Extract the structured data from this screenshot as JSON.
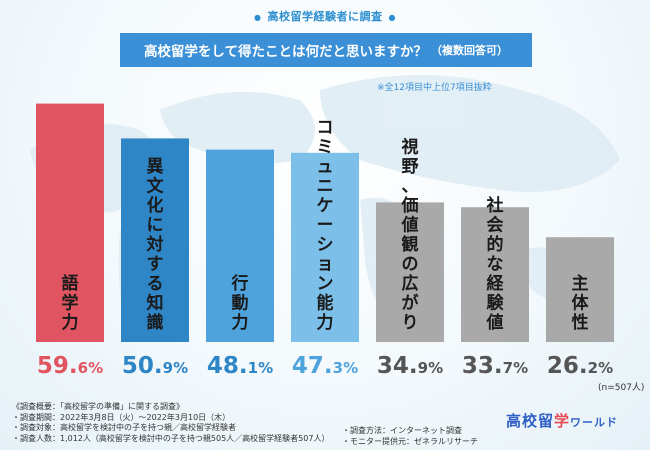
{
  "header": {
    "survey_label": "高校留学経験者に調査"
  },
  "question": {
    "main": "高校留学をして得たことは何だと思いますか？",
    "suffix": "（複数回答可）"
  },
  "note": "※全12項目中上位7項目抜粋",
  "sample": "(n=507人)",
  "chart_data": {
    "type": "bar",
    "categories": [
      "語学力",
      "異文化に対する知識",
      "行動力",
      "コミュニケーション能力",
      "視野、価値観の広がり",
      "社会的な経験値",
      "主体性"
    ],
    "values": [
      59.6,
      50.9,
      48.1,
      47.3,
      34.9,
      33.7,
      26.2
    ],
    "value_unit": "%",
    "colors": [
      "#e05561",
      "#2f86c7",
      "#4fa3dd",
      "#7cc0ea",
      "#a9a9a9",
      "#a9a9a9",
      "#a9a9a9"
    ],
    "value_colors": [
      "#e05561",
      "#2f86c7",
      "#2f86c7",
      "#4fa3dd",
      "#555555",
      "#555555",
      "#555555"
    ],
    "ylim": [
      0,
      60
    ]
  },
  "footer": {
    "left": [
      "《調査概要：「高校留学の準備」に関する調査》",
      "・調査期間：2022年3月8日（火）〜2022年3月10日（木）",
      "・調査対象：高校留学を検討中の子を持つ親／高校留学経験者",
      "・調査人数：1,012人（高校留学を検討中の子を持つ親505人／高校留学経験者507人）"
    ],
    "right": [
      "・調査方法：インターネット調査",
      "・モニター提供元：ゼネラルリサーチ"
    ],
    "logo_main": "高校留",
    "logo_accent": "学",
    "logo_tail": "ワールド"
  }
}
